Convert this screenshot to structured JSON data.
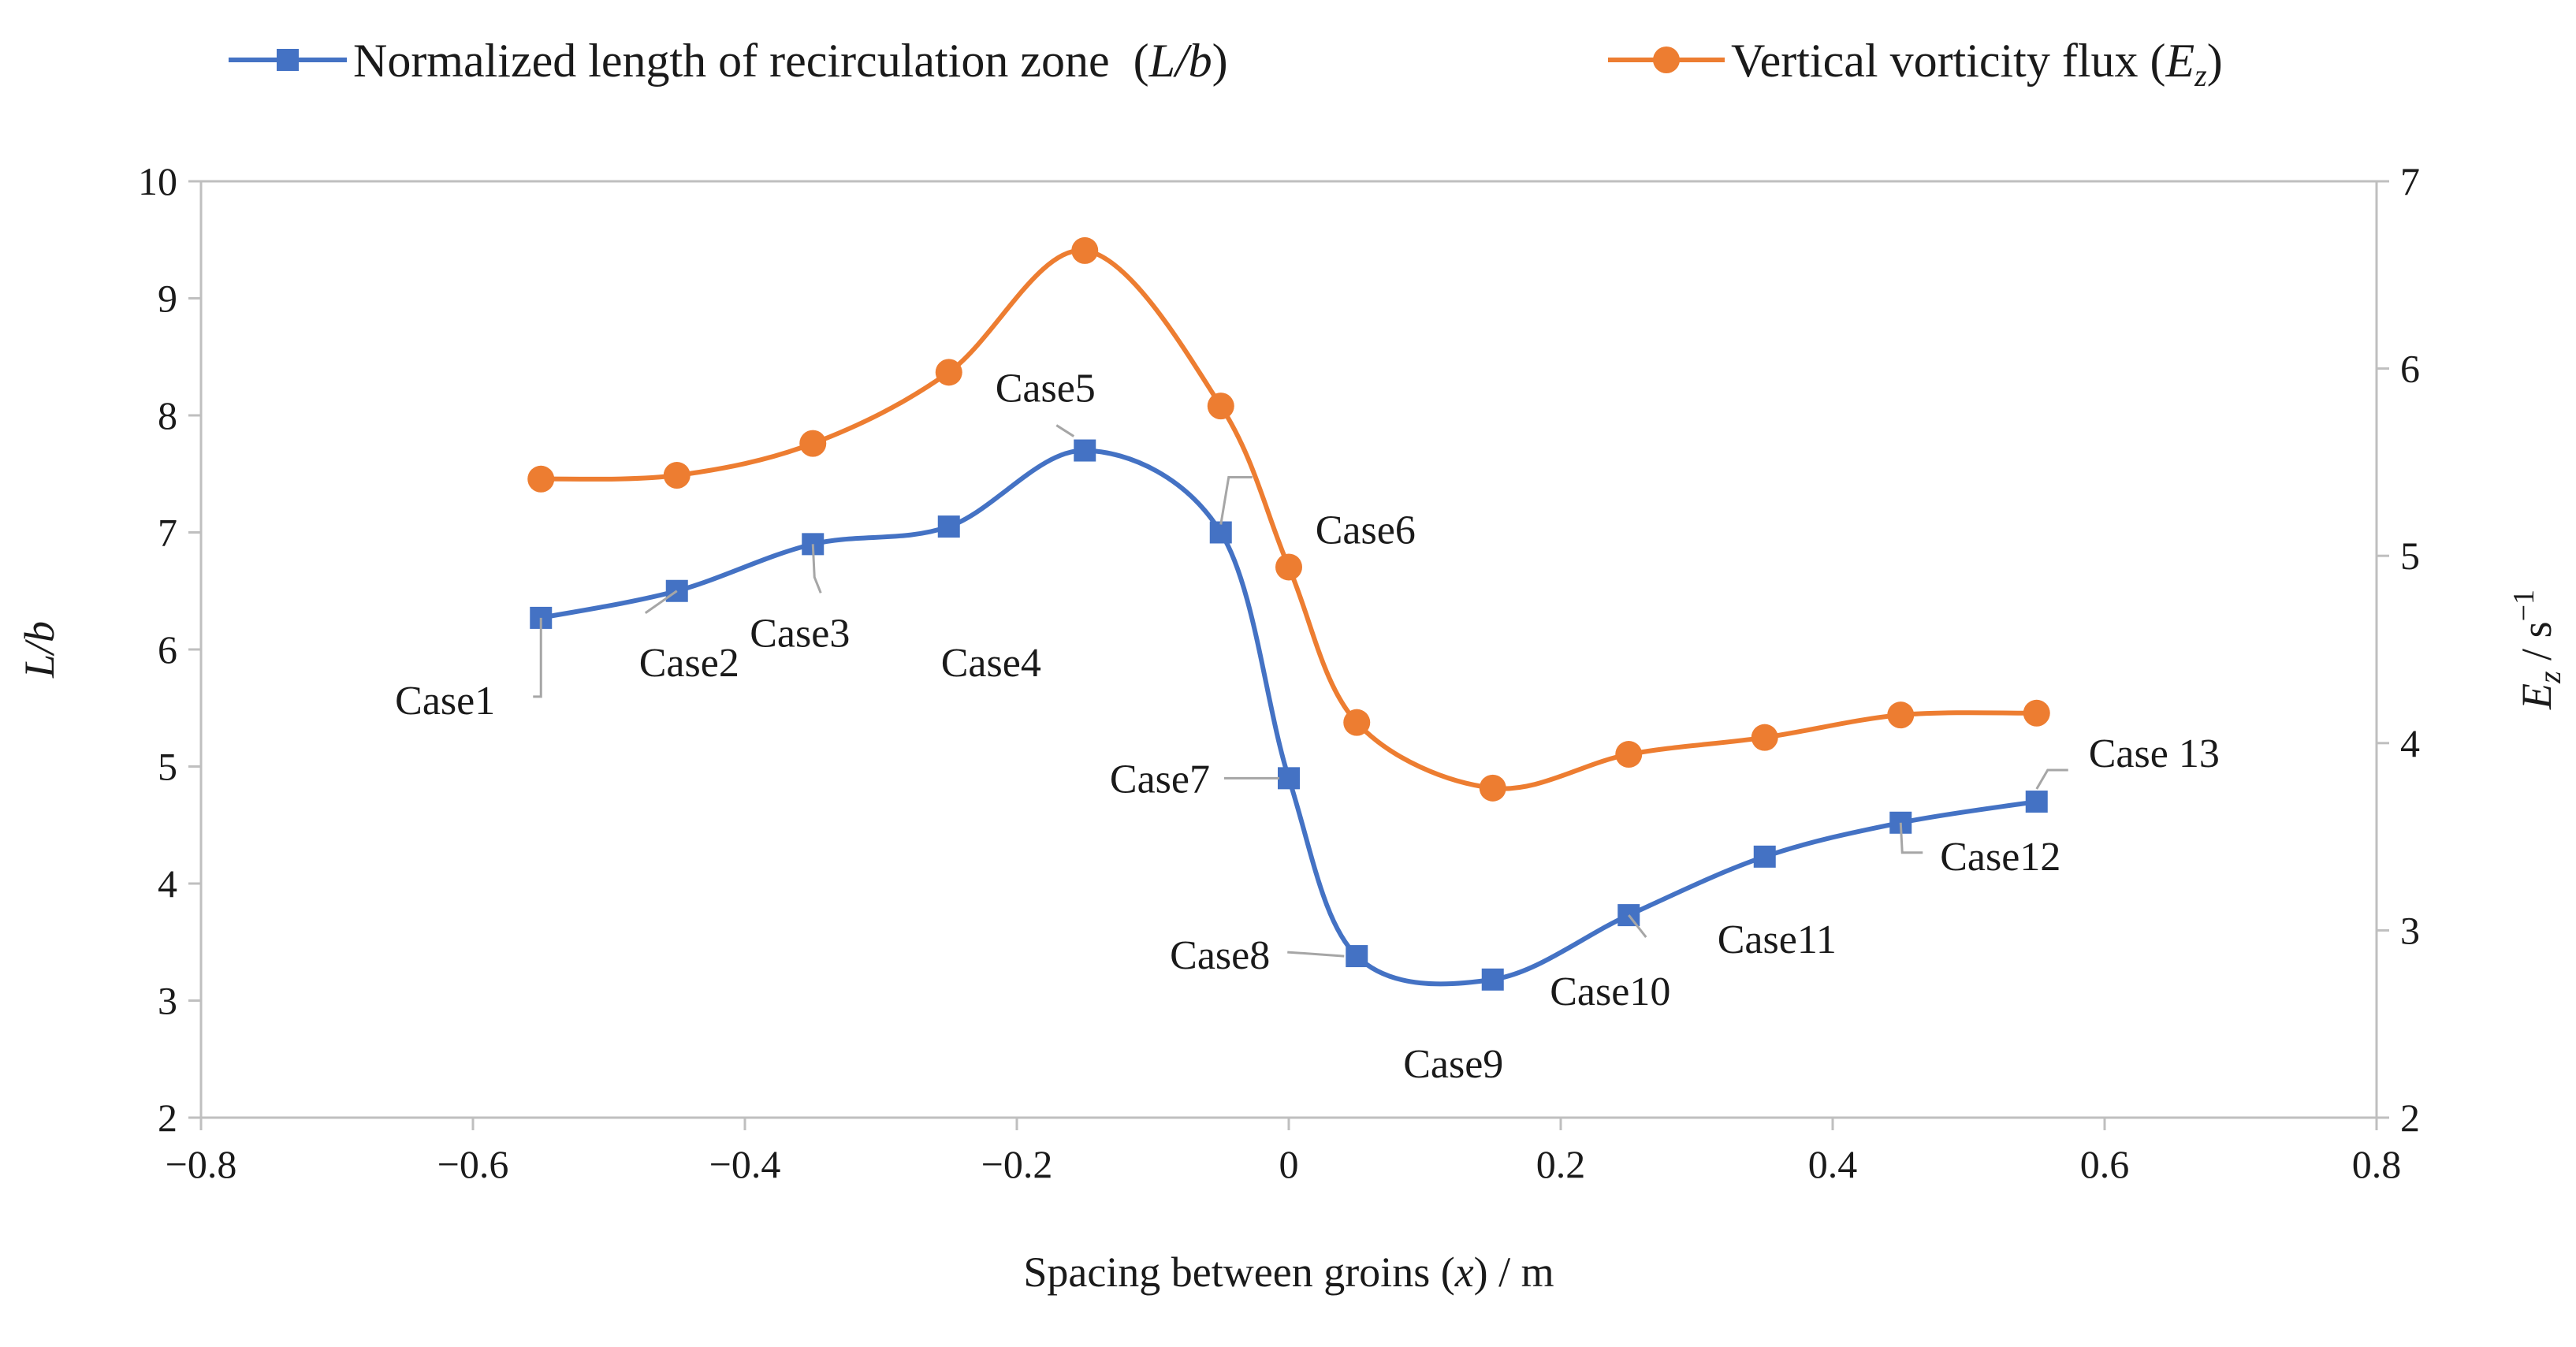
{
  "chart_data": {
    "type": "line",
    "legend": {
      "placement": "top",
      "items": [
        {
          "label": "Normalized length of recirculation zone",
          "symbol": "L/b",
          "color": "#4472C4",
          "marker": "square"
        },
        {
          "label": "Vertical vorticity flux",
          "symbol": "E",
          "symbol_sub": "z",
          "color": "#ED7D31",
          "marker": "circle"
        }
      ]
    },
    "xlabel": {
      "text": "Spacing between groins (",
      "var": "x",
      "unit": ") / m"
    },
    "ylabel_left": {
      "var": "L/b"
    },
    "ylabel_right": {
      "var": "E",
      "sub": "z",
      "unit": " / s",
      "sup": "−1"
    },
    "xlim": [
      -0.8,
      0.8
    ],
    "ylim_left": [
      2,
      10
    ],
    "ylim_right": [
      2,
      7
    ],
    "x_ticks": [
      "−0.8",
      "−0.6",
      "−0.4",
      "−0.2",
      "0",
      "0.2",
      "0.4",
      "0.6",
      "0.8"
    ],
    "x_tick_values": [
      -0.8,
      -0.6,
      -0.4,
      -0.2,
      0,
      0.2,
      0.4,
      0.6,
      0.8
    ],
    "y_ticks_left": [
      "2",
      "3",
      "4",
      "5",
      "6",
      "7",
      "8",
      "9",
      "10"
    ],
    "y_tick_values_left": [
      2,
      3,
      4,
      5,
      6,
      7,
      8,
      9,
      10
    ],
    "y_ticks_right": [
      "2",
      "3",
      "4",
      "5",
      "6",
      "7"
    ],
    "y_tick_values_right": [
      2,
      3,
      4,
      5,
      6,
      7
    ],
    "grid": false,
    "series": [
      {
        "name": "Normalized length of recirculation zone (L/b)",
        "axis": "left",
        "color": "#4472C4",
        "marker": "square",
        "x": [
          -0.55,
          -0.45,
          -0.35,
          -0.25,
          -0.15,
          -0.05,
          0.0,
          0.05,
          0.15,
          0.25,
          0.35,
          0.45,
          0.55
        ],
        "y": [
          6.27,
          6.5,
          6.9,
          7.05,
          7.7,
          7.0,
          4.9,
          3.38,
          3.18,
          3.73,
          4.23,
          4.52,
          4.7
        ]
      },
      {
        "name": "Vertical vorticity flux (Ez)",
        "axis": "right",
        "color": "#ED7D31",
        "marker": "circle",
        "x": [
          -0.55,
          -0.45,
          -0.35,
          -0.25,
          -0.15,
          -0.05,
          0.0,
          0.05,
          0.15,
          0.25,
          0.35,
          0.45,
          0.55
        ],
        "y": [
          5.41,
          5.43,
          5.6,
          5.98,
          6.63,
          5.8,
          4.94,
          4.11,
          3.76,
          3.94,
          4.03,
          4.15,
          4.16
        ]
      }
    ],
    "annotations": [
      {
        "text": "Case1",
        "x": -0.55
      },
      {
        "text": "Case2",
        "x": -0.45
      },
      {
        "text": "Case3",
        "x": -0.35
      },
      {
        "text": "Case4",
        "x": -0.25
      },
      {
        "text": "Case5",
        "x": -0.15
      },
      {
        "text": "Case6",
        "x": -0.05
      },
      {
        "text": "Case7",
        "x": 0.0
      },
      {
        "text": "Case8",
        "x": 0.05
      },
      {
        "text": "Case9",
        "x": 0.15
      },
      {
        "text": "Case10",
        "x": 0.25
      },
      {
        "text": "Case11",
        "x": 0.35
      },
      {
        "text": "Case12",
        "x": 0.45
      },
      {
        "text": "Case 13",
        "x": 0.55
      }
    ]
  }
}
